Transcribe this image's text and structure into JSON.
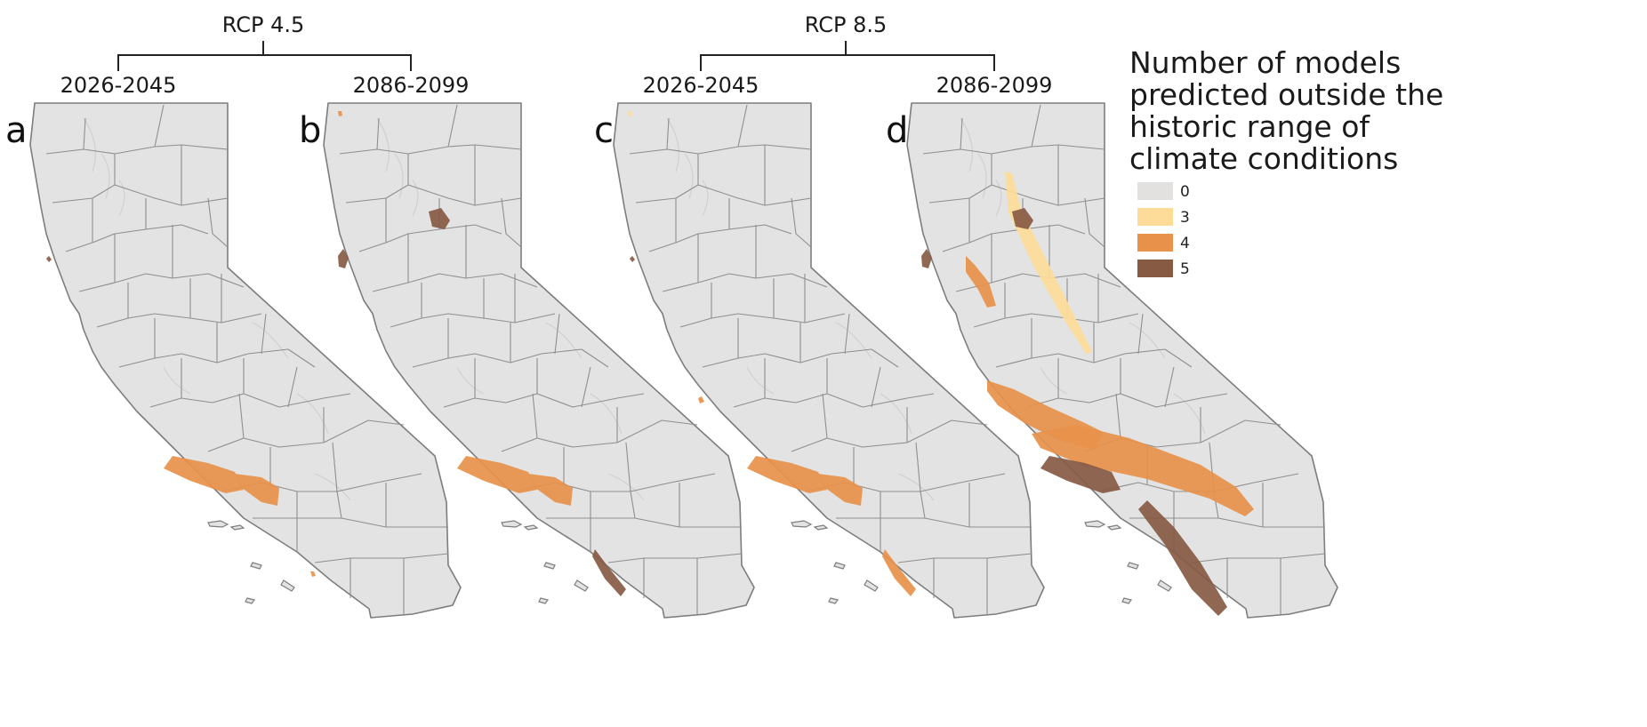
{
  "figure": {
    "scenarios": [
      {
        "id": "rcp45",
        "label": "RCP 4.5"
      },
      {
        "id": "rcp85",
        "label": "RCP 8.5"
      }
    ],
    "panels": [
      {
        "letter": "a",
        "scenario": "rcp45",
        "period": "2026-2045",
        "patches": [
          {
            "region": "south-coast-west",
            "level": 4,
            "extent": "small"
          },
          {
            "region": "la-basin",
            "level": 4,
            "extent": "small"
          },
          {
            "region": "san-diego",
            "level": 4,
            "extent": "trace"
          },
          {
            "region": "north-coast",
            "level": 5,
            "extent": "trace"
          }
        ]
      },
      {
        "letter": "b",
        "scenario": "rcp45",
        "period": "2086-2099",
        "patches": [
          {
            "region": "south-coast-west",
            "level": 4,
            "extent": "medium"
          },
          {
            "region": "la-basin",
            "level": 4,
            "extent": "medium"
          },
          {
            "region": "san-diego",
            "level": 5,
            "extent": "small"
          },
          {
            "region": "north-coast",
            "level": 5,
            "extent": "small"
          },
          {
            "region": "tahoe",
            "level": 5,
            "extent": "small"
          },
          {
            "region": "far-north",
            "level": 4,
            "extent": "trace"
          }
        ]
      },
      {
        "letter": "c",
        "scenario": "rcp85",
        "period": "2026-2045",
        "patches": [
          {
            "region": "south-coast-west",
            "level": 4,
            "extent": "medium"
          },
          {
            "region": "la-basin",
            "level": 4,
            "extent": "medium"
          },
          {
            "region": "san-diego",
            "level": 4,
            "extent": "small"
          },
          {
            "region": "central-coast",
            "level": 4,
            "extent": "trace"
          },
          {
            "region": "north-coast",
            "level": 5,
            "extent": "trace"
          },
          {
            "region": "far-north",
            "level": 3,
            "extent": "trace"
          }
        ]
      },
      {
        "letter": "d",
        "scenario": "rcp85",
        "period": "2086-2099",
        "patches": [
          {
            "region": "sierra",
            "level": 3,
            "extent": "large"
          },
          {
            "region": "tahoe",
            "level": 5,
            "extent": "small"
          },
          {
            "region": "north-bay",
            "level": 4,
            "extent": "small"
          },
          {
            "region": "north-coast",
            "level": 5,
            "extent": "small"
          },
          {
            "region": "central-coast",
            "level": 4,
            "extent": "large"
          },
          {
            "region": "transverse",
            "level": 4,
            "extent": "large"
          },
          {
            "region": "south-coast-west",
            "level": 5,
            "extent": "medium"
          },
          {
            "region": "peninsular",
            "level": 5,
            "extent": "large"
          }
        ]
      }
    ]
  },
  "legend": {
    "title_lines": [
      "Number of models",
      "predicted outside the",
      "historic range of",
      "climate conditions"
    ],
    "items": [
      {
        "value": "0",
        "color": "#e3e1e0"
      },
      {
        "value": "3",
        "color": "#fddc99"
      },
      {
        "value": "4",
        "color": "#e8914a"
      },
      {
        "value": "5",
        "color": "#875a43"
      }
    ]
  }
}
